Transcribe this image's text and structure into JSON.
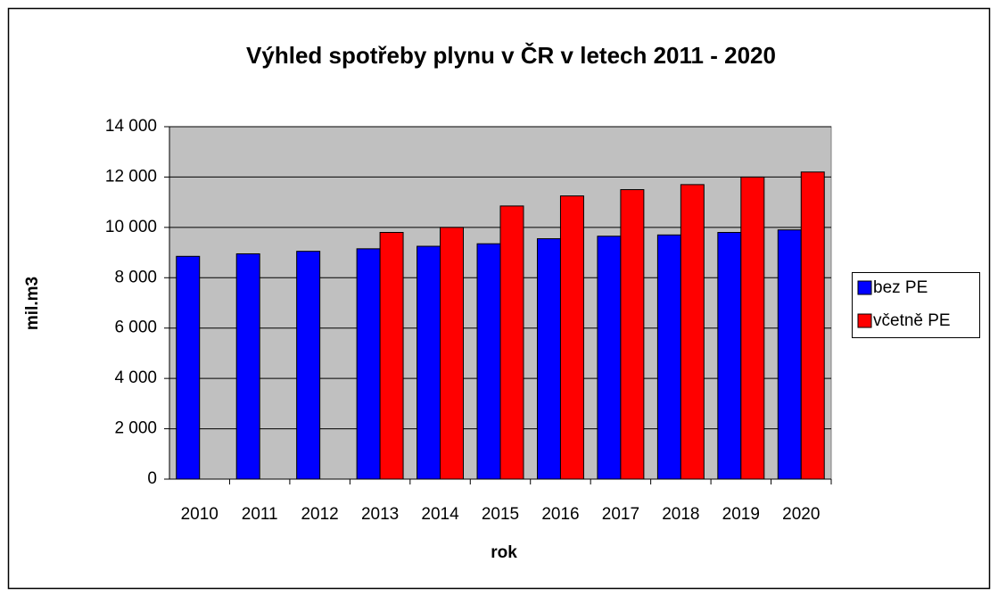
{
  "chart_data": {
    "type": "bar",
    "title": "Výhled spotřeby plynu v ČR v letech 2011 - 2020",
    "x_label": "rok",
    "y_label": "mil.m3",
    "categories": [
      "2010",
      "2011",
      "2012",
      "2013",
      "2014",
      "2015",
      "2016",
      "2017",
      "2018",
      "2019",
      "2020"
    ],
    "series": [
      {
        "name": "bez PE",
        "color": "#0000ff",
        "values": [
          8850,
          8950,
          9050,
          9150,
          9250,
          9350,
          9550,
          9650,
          9700,
          9800,
          9900
        ]
      },
      {
        "name": "včetně PE",
        "color": "#ff0000",
        "values": [
          null,
          null,
          null,
          9800,
          10000,
          10850,
          11250,
          11500,
          11700,
          12000,
          12200
        ]
      }
    ],
    "ylim": [
      0,
      14000
    ],
    "yticks": [
      0,
      {
        "value": 2000,
        "label": "2 000"
      },
      {
        "value": 4000,
        "label": "4 000"
      },
      {
        "value": 6000,
        "label": "6 000"
      },
      {
        "value": 8000,
        "label": "8 000"
      },
      {
        "value": 10000,
        "label": "10 000"
      },
      {
        "value": 12000,
        "label": "12 000"
      },
      {
        "value": 14000,
        "label": "14 000"
      }
    ],
    "grid": true,
    "legend": "right"
  }
}
